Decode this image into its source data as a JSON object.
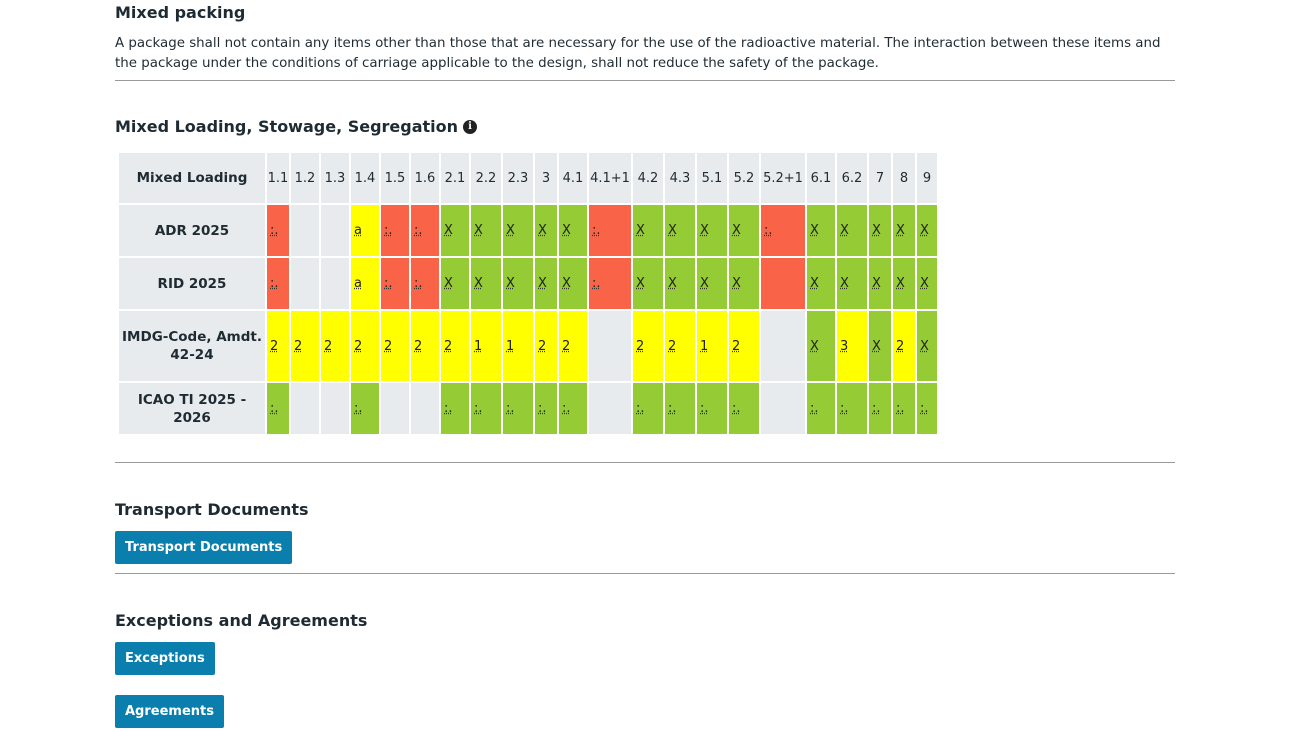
{
  "mixed_packing": {
    "title": "Mixed packing",
    "text": "A package shall not contain any items other than those that are necessary for the use of the radioactive material. The interaction between these items and the package under the conditions of carriage applicable to the design, shall not reduce the safety of the package."
  },
  "mixed_loading": {
    "title": "Mixed Loading, Stowage, Segregation",
    "info_icon": "info-icon",
    "corner_label": "Mixed Loading",
    "columns": [
      "1.1",
      "1.2",
      "1.3",
      "1.4",
      "1.5",
      "1.6",
      "2.1",
      "2.2",
      "2.3",
      "3",
      "4.1",
      "4.1+1",
      "4.2",
      "4.3",
      "5.1",
      "5.2",
      "5.2+1",
      "6.1",
      "6.2",
      "7",
      "8",
      "9"
    ],
    "rows": [
      {
        "label": "ADR 2025",
        "cells": [
          {
            "v": ":.",
            "c": "red"
          },
          {
            "v": "",
            "c": "grey"
          },
          {
            "v": "",
            "c": "grey"
          },
          {
            "v": "a",
            "c": "yellow"
          },
          {
            "v": ":.",
            "c": "red"
          },
          {
            "v": ":.",
            "c": "red"
          },
          {
            "v": "X",
            "c": "green"
          },
          {
            "v": "X",
            "c": "green"
          },
          {
            "v": "X",
            "c": "green"
          },
          {
            "v": "X",
            "c": "green"
          },
          {
            "v": "X",
            "c": "green"
          },
          {
            "v": ":.",
            "c": "red"
          },
          {
            "v": "X",
            "c": "green"
          },
          {
            "v": "X",
            "c": "green"
          },
          {
            "v": "X",
            "c": "green"
          },
          {
            "v": "X",
            "c": "green"
          },
          {
            "v": ":.",
            "c": "red"
          },
          {
            "v": "X",
            "c": "green"
          },
          {
            "v": "X",
            "c": "green"
          },
          {
            "v": "X",
            "c": "green"
          },
          {
            "v": "X",
            "c": "green"
          },
          {
            "v": "X",
            "c": "green"
          }
        ]
      },
      {
        "label": "RID 2025",
        "cells": [
          {
            "v": ":.",
            "c": "red"
          },
          {
            "v": "",
            "c": "grey"
          },
          {
            "v": "",
            "c": "grey"
          },
          {
            "v": "a",
            "c": "yellow"
          },
          {
            "v": ":.",
            "c": "red"
          },
          {
            "v": ":.",
            "c": "red"
          },
          {
            "v": "X",
            "c": "green"
          },
          {
            "v": "X",
            "c": "green"
          },
          {
            "v": "X",
            "c": "green"
          },
          {
            "v": "X",
            "c": "green"
          },
          {
            "v": "X",
            "c": "green"
          },
          {
            "v": ":.",
            "c": "red"
          },
          {
            "v": "X",
            "c": "green"
          },
          {
            "v": "X",
            "c": "green"
          },
          {
            "v": "X",
            "c": "green"
          },
          {
            "v": "X",
            "c": "green"
          },
          {
            "v": "",
            "c": "red"
          },
          {
            "v": "X",
            "c": "green"
          },
          {
            "v": "X",
            "c": "green"
          },
          {
            "v": "X",
            "c": "green"
          },
          {
            "v": "X",
            "c": "green"
          },
          {
            "v": "X",
            "c": "green"
          }
        ]
      },
      {
        "label": "IMDG-Code, Amdt. 42-24",
        "cells": [
          {
            "v": "2",
            "c": "yellow"
          },
          {
            "v": "2",
            "c": "yellow"
          },
          {
            "v": "2",
            "c": "yellow"
          },
          {
            "v": "2",
            "c": "yellow"
          },
          {
            "v": "2",
            "c": "yellow"
          },
          {
            "v": "2",
            "c": "yellow"
          },
          {
            "v": "2",
            "c": "yellow"
          },
          {
            "v": "1",
            "c": "yellow"
          },
          {
            "v": "1",
            "c": "yellow"
          },
          {
            "v": "2",
            "c": "yellow"
          },
          {
            "v": "2",
            "c": "yellow"
          },
          {
            "v": "",
            "c": "grey"
          },
          {
            "v": "2",
            "c": "yellow"
          },
          {
            "v": "2",
            "c": "yellow"
          },
          {
            "v": "1",
            "c": "yellow"
          },
          {
            "v": "2",
            "c": "yellow"
          },
          {
            "v": "",
            "c": "grey"
          },
          {
            "v": "X",
            "c": "green"
          },
          {
            "v": "3",
            "c": "yellow"
          },
          {
            "v": "X",
            "c": "green"
          },
          {
            "v": "2",
            "c": "yellow"
          },
          {
            "v": "X",
            "c": "green"
          }
        ]
      },
      {
        "label": "ICAO TI 2025 - 2026",
        "cells": [
          {
            "v": ":.",
            "c": "green"
          },
          {
            "v": "",
            "c": "grey"
          },
          {
            "v": "",
            "c": "grey"
          },
          {
            "v": ":.",
            "c": "green"
          },
          {
            "v": "",
            "c": "grey"
          },
          {
            "v": "",
            "c": "grey"
          },
          {
            "v": ":.",
            "c": "green"
          },
          {
            "v": ":.",
            "c": "green"
          },
          {
            "v": ":.",
            "c": "green"
          },
          {
            "v": ":.",
            "c": "green"
          },
          {
            "v": ":.",
            "c": "green"
          },
          {
            "v": "",
            "c": "grey"
          },
          {
            "v": ":.",
            "c": "green"
          },
          {
            "v": ":.",
            "c": "green"
          },
          {
            "v": ":.",
            "c": "green"
          },
          {
            "v": ":.",
            "c": "green"
          },
          {
            "v": "",
            "c": "grey"
          },
          {
            "v": ":.",
            "c": "green"
          },
          {
            "v": ":.",
            "c": "green"
          },
          {
            "v": ":.",
            "c": "green"
          },
          {
            "v": ":.",
            "c": "green"
          },
          {
            "v": ":.",
            "c": "green"
          }
        ]
      }
    ]
  },
  "transport_documents": {
    "title": "Transport Documents",
    "button": "Transport Documents"
  },
  "exceptions": {
    "title": "Exceptions and Agreements",
    "exceptions_button": "Exceptions",
    "agreements_button": "Agreements"
  },
  "colors": {
    "red": "#f96348",
    "yellow": "#ffff00",
    "green": "#95cb34",
    "grey": "#e8ebed",
    "button": "#0a7fae"
  }
}
